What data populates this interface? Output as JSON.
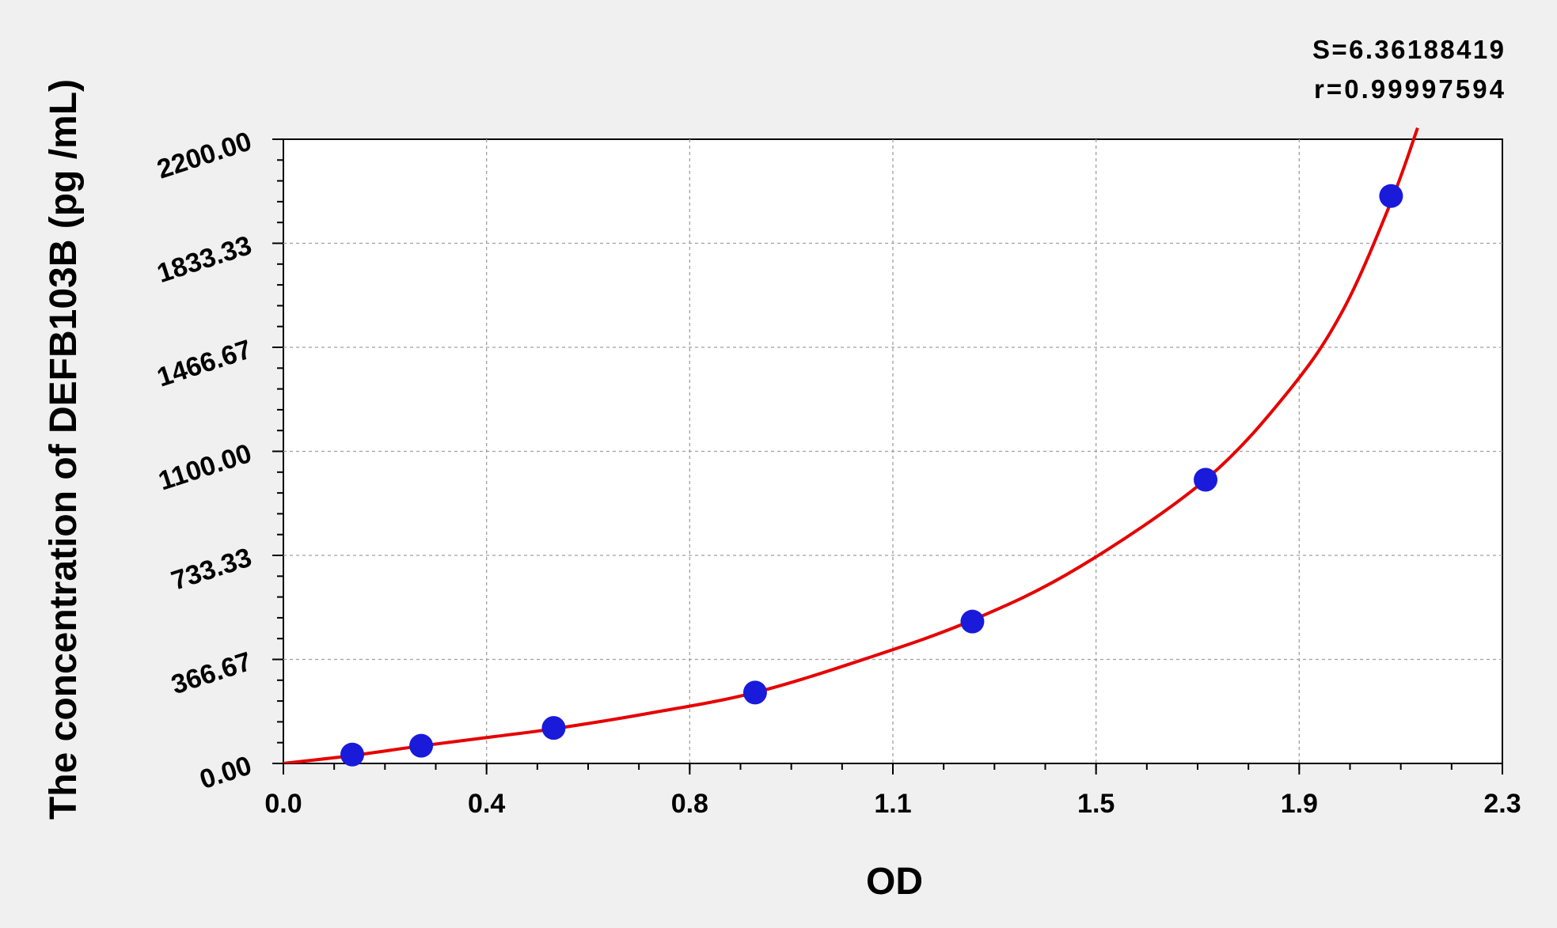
{
  "chart_data": {
    "type": "scatter",
    "title": "",
    "xlabel": "OD",
    "ylabel": "The concentration of DEFB103B (pg /mL)",
    "xlim": [
      0.0,
      2.3
    ],
    "ylim": [
      0.0,
      2200.0
    ],
    "x_ticks": [
      "0.0",
      "0.4",
      "0.8",
      "1.1",
      "1.5",
      "1.9",
      "2.3"
    ],
    "y_ticks": [
      "0.00",
      "366.67",
      "733.33",
      "1100.00",
      "1466.67",
      "1833.33",
      "2200.00"
    ],
    "grid": true,
    "annotations": [
      "S=6.36188419",
      "r=0.99997594"
    ],
    "series": [
      {
        "type": "scatter",
        "color": "#1a1adb",
        "points": [
          {
            "x": 0.13,
            "y": 31.25
          },
          {
            "x": 0.26,
            "y": 62.5
          },
          {
            "x": 0.51,
            "y": 125
          },
          {
            "x": 0.89,
            "y": 250
          },
          {
            "x": 1.3,
            "y": 500
          },
          {
            "x": 1.74,
            "y": 1000
          },
          {
            "x": 2.09,
            "y": 2000
          }
        ]
      },
      {
        "type": "line",
        "color": "#e60000",
        "points": [
          {
            "x": 0.0,
            "y": 0
          },
          {
            "x": 0.13,
            "y": 28
          },
          {
            "x": 0.26,
            "y": 62
          },
          {
            "x": 0.4,
            "y": 95
          },
          {
            "x": 0.51,
            "y": 122
          },
          {
            "x": 0.7,
            "y": 180
          },
          {
            "x": 0.89,
            "y": 250
          },
          {
            "x": 1.1,
            "y": 370
          },
          {
            "x": 1.3,
            "y": 505
          },
          {
            "x": 1.5,
            "y": 690
          },
          {
            "x": 1.74,
            "y": 1000
          },
          {
            "x": 1.9,
            "y": 1320
          },
          {
            "x": 2.0,
            "y": 1600
          },
          {
            "x": 2.09,
            "y": 1980
          },
          {
            "x": 2.14,
            "y": 2240
          }
        ]
      }
    ]
  }
}
